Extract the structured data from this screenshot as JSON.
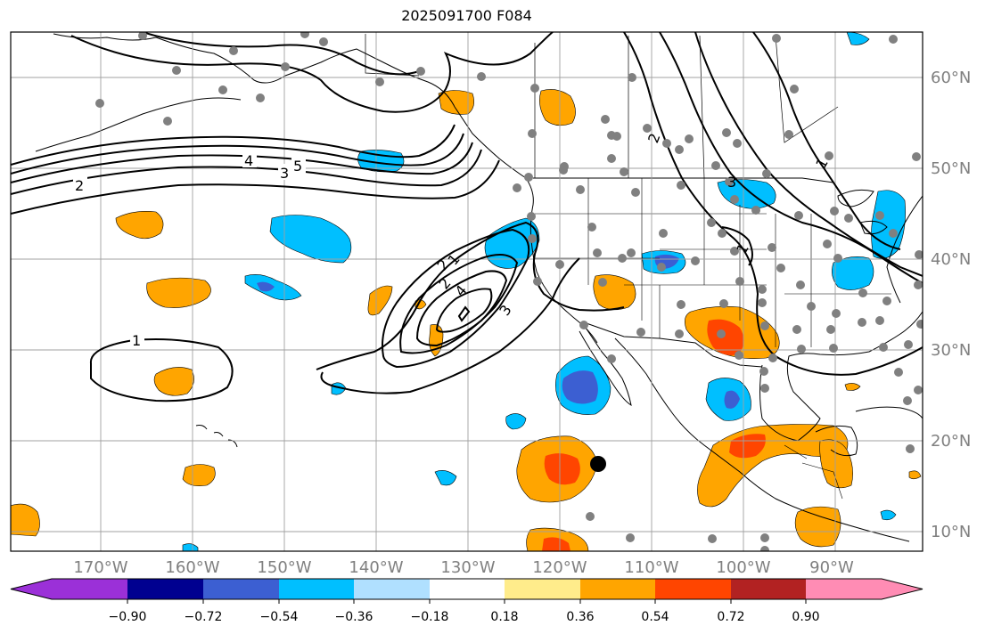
{
  "title": "2025091700 F084",
  "longitude_labels": [
    "170°W",
    "160°W",
    "150°W",
    "140°W",
    "130°W",
    "120°W",
    "110°W",
    "100°W",
    "90°W"
  ],
  "latitude_labels": [
    "60°N",
    "50°N",
    "40°N",
    "30°N",
    "20°N",
    "10°N"
  ],
  "colorbar": {
    "tick_labels": [
      "−0.90",
      "−0.72",
      "−0.54",
      "−0.36",
      "−0.18",
      "0.18",
      "0.36",
      "0.54",
      "0.72",
      "0.90"
    ],
    "colors": [
      "#9b30d8",
      "#000090",
      "#3c5fd2",
      "#00bfff",
      "#b0e0ff",
      "#ffffff",
      "#ffec8b",
      "#ffa500",
      "#ff4500",
      "#b22222",
      "#ff8cb4"
    ]
  },
  "contour_labels": [
    "1",
    "2",
    "3",
    "4",
    "5",
    "2",
    "1",
    "2",
    "4",
    "3",
    "2",
    "3",
    "1",
    "1"
  ],
  "colors": {
    "orange": "#ffa500",
    "red_orange": "#ff4500",
    "light_blue": "#00bfff",
    "medium_blue": "#3c5fd2",
    "station_dots": "#808080",
    "marker": "#000000"
  }
}
